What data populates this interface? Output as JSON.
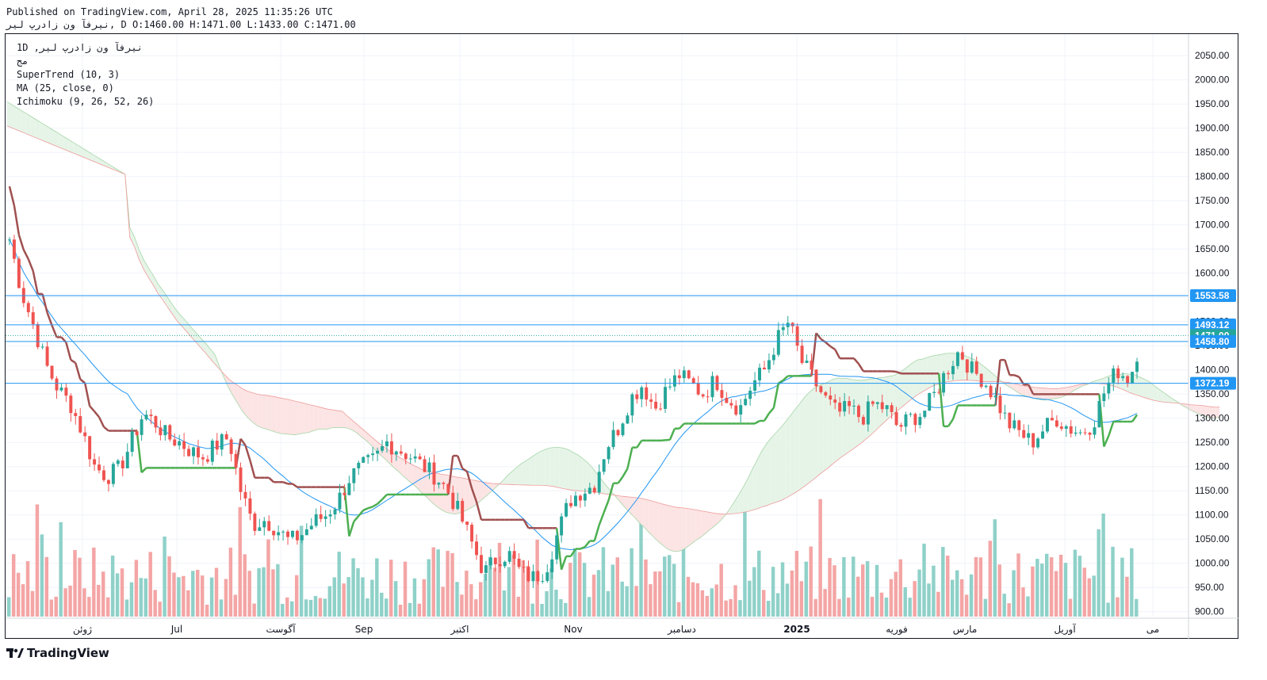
{
  "header": {
    "published": "Published on TradingView.com, April 28, 2025 11:35:26 UTC",
    "ohlc_line": "نیرفآ ون زادرپ لیر, D O:1460.00 H:1471.00 L:1433.00 C:1471.00"
  },
  "legend": {
    "symbol": "1D ,نیرفآ ون زادرپ لیر",
    "exchange": "مج",
    "supertrend": "SuperTrend (10, 3)",
    "ma": "MA (25, close, 0)",
    "ichimoku": "Ichimoku (9, 26, 52, 26)"
  },
  "footer": {
    "brand": "TradingView"
  },
  "colors": {
    "up": "#26a69a",
    "down": "#ef5350",
    "up_vol": "#8fd1c9",
    "down_vol": "#f4a5a5",
    "supertrend_up": "#4caf50",
    "supertrend_down": "#a05050",
    "ma": "#2196f3",
    "hline": "#2196f3",
    "cloud_bear": "#fce4e4",
    "cloud_bull": "#e6f4e8",
    "badge_green": "#26a69a",
    "badge_blue": "#2196f3"
  },
  "chart_data": {
    "type": "candlestick",
    "timeframe": "1D",
    "y_axis": {
      "ticks": [
        "2050.00",
        "2000.00",
        "1950.00",
        "1900.00",
        "1850.00",
        "1800.00",
        "1750.00",
        "1700.00",
        "1650.00",
        "1600.00",
        "1550.00",
        "1500.00",
        "1450.00",
        "1400.00",
        "1350.00",
        "1300.00",
        "1250.00",
        "1200.00",
        "1150.00",
        "1100.00",
        "1050.00",
        "1000.00",
        "950.00",
        "900.00"
      ],
      "range": [
        870,
        2075
      ]
    },
    "x_axis": {
      "labels": [
        "ژوئن",
        "Jul",
        "آگوست",
        "Sep",
        "اکتبر",
        "Nov",
        "دسامبر",
        "2025",
        "فوریه",
        "مارس",
        "آوریل",
        "می"
      ]
    },
    "price_lines": [
      1553.58,
      1493.12,
      1458.8,
      1372.19
    ],
    "last_price": 1471.0,
    "badges": [
      {
        "label": "1553.58",
        "value": 1553.58,
        "kind": "blue"
      },
      {
        "label": "1493.12",
        "value": 1493.12,
        "kind": "blue"
      },
      {
        "label": "1471.00",
        "value": 1471.0,
        "kind": "green"
      },
      {
        "label": "1458.80",
        "value": 1458.8,
        "kind": "blue"
      },
      {
        "label": "1372.19",
        "value": 1372.19,
        "kind": "blue"
      }
    ],
    "price_keyframes": [
      [
        0,
        1670
      ],
      [
        10,
        1560
      ],
      [
        20,
        1490
      ],
      [
        30,
        1410
      ],
      [
        40,
        1360
      ],
      [
        50,
        1330
      ],
      [
        60,
        1270
      ],
      [
        70,
        1200
      ],
      [
        80,
        1180
      ],
      [
        90,
        1195
      ],
      [
        100,
        1250
      ],
      [
        110,
        1310
      ],
      [
        120,
        1290
      ],
      [
        130,
        1260
      ],
      [
        140,
        1250
      ],
      [
        150,
        1230
      ],
      [
        160,
        1220
      ],
      [
        170,
        1245
      ],
      [
        180,
        1260
      ],
      [
        190,
        1150
      ],
      [
        200,
        1080
      ],
      [
        210,
        1090
      ],
      [
        220,
        1070
      ],
      [
        230,
        1045
      ],
      [
        240,
        1060
      ],
      [
        250,
        1085
      ],
      [
        260,
        1100
      ],
      [
        270,
        1130
      ],
      [
        280,
        1180
      ],
      [
        290,
        1200
      ],
      [
        300,
        1215
      ],
      [
        310,
        1250
      ],
      [
        320,
        1235
      ],
      [
        330,
        1220
      ],
      [
        340,
        1200
      ],
      [
        350,
        1180
      ],
      [
        360,
        1150
      ],
      [
        370,
        1100
      ],
      [
        380,
        1040
      ],
      [
        390,
        980
      ],
      [
        400,
        1010
      ],
      [
        410,
        1020
      ],
      [
        420,
        980
      ],
      [
        430,
        970
      ],
      [
        440,
        985
      ],
      [
        450,
        1060
      ],
      [
        460,
        1130
      ],
      [
        470,
        1150
      ],
      [
        480,
        1160
      ],
      [
        490,
        1240
      ],
      [
        500,
        1280
      ],
      [
        510,
        1340
      ],
      [
        520,
        1370
      ],
      [
        530,
        1320
      ],
      [
        540,
        1360
      ],
      [
        550,
        1390
      ],
      [
        560,
        1370
      ],
      [
        570,
        1350
      ],
      [
        580,
        1380
      ],
      [
        590,
        1340
      ],
      [
        600,
        1320
      ],
      [
        610,
        1370
      ],
      [
        620,
        1400
      ],
      [
        630,
        1460
      ],
      [
        640,
        1500
      ],
      [
        650,
        1420
      ],
      [
        660,
        1380
      ],
      [
        670,
        1340
      ],
      [
        680,
        1310
      ],
      [
        690,
        1320
      ],
      [
        700,
        1300
      ],
      [
        710,
        1330
      ],
      [
        720,
        1320
      ],
      [
        730,
        1280
      ],
      [
        740,
        1300
      ],
      [
        750,
        1310
      ],
      [
        760,
        1350
      ],
      [
        770,
        1400
      ],
      [
        780,
        1440
      ],
      [
        790,
        1400
      ],
      [
        800,
        1380
      ],
      [
        810,
        1340
      ],
      [
        820,
        1290
      ],
      [
        830,
        1270
      ],
      [
        840,
        1250
      ],
      [
        850,
        1280
      ],
      [
        860,
        1300
      ],
      [
        870,
        1280
      ],
      [
        880,
        1270
      ],
      [
        890,
        1290
      ],
      [
        900,
        1360
      ],
      [
        910,
        1400
      ],
      [
        920,
        1380
      ],
      [
        930,
        1471
      ]
    ],
    "candle_count": 240
  }
}
